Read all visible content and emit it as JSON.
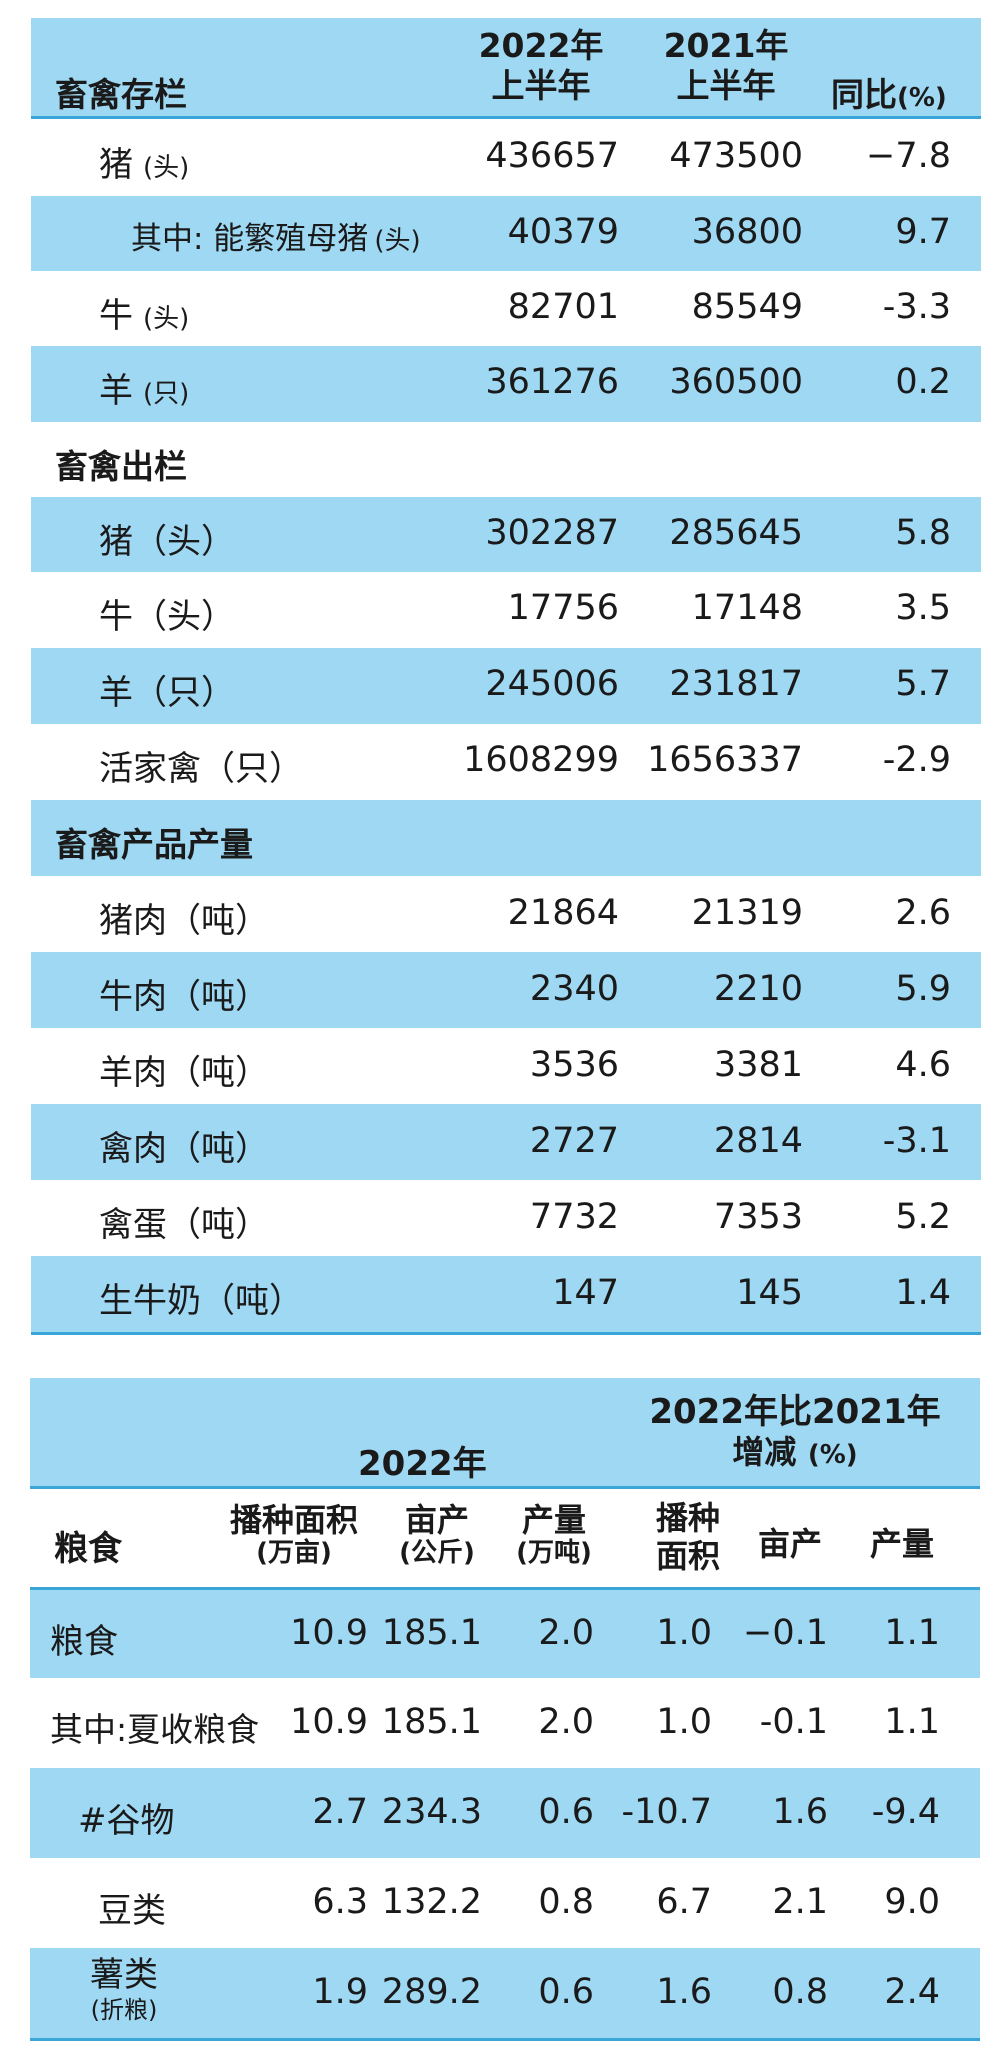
{
  "livestock": {
    "headers": {
      "title": "畜禽存栏",
      "year2022": "2022年",
      "half2022": "上半年",
      "year2021": "2021年",
      "half2021": "上半年",
      "yoy": "同比",
      "yoy_unit": "(%)"
    },
    "sec_stock": [
      {
        "name": "猪",
        "unit": "(头)",
        "v2022": "436657",
        "v2021": "473500",
        "yoy": "−7.8"
      },
      {
        "name": "其中: 能繁殖母猪",
        "unit": "(头)",
        "v2022": "40379",
        "v2021": "36800",
        "yoy": "9.7"
      },
      {
        "name": "牛",
        "unit": "(头)",
        "v2022": "82701",
        "v2021": "85549",
        "yoy": "-3.3"
      },
      {
        "name": "羊",
        "unit": "(只)",
        "v2022": "361276",
        "v2021": "360500",
        "yoy": "0.2"
      }
    ],
    "sec_out_title": "畜禽出栏",
    "sec_out": [
      {
        "name": "猪（头）",
        "v2022": "302287",
        "v2021": "285645",
        "yoy": "5.8"
      },
      {
        "name": "牛（头）",
        "v2022": "17756",
        "v2021": "17148",
        "yoy": "3.5"
      },
      {
        "name": "羊（只）",
        "v2022": "245006",
        "v2021": "231817",
        "yoy": "5.7"
      },
      {
        "name": "活家禽（只）",
        "v2022": "1608299",
        "v2021": "1656337",
        "yoy": "-2.9"
      }
    ],
    "sec_prod_title": "畜禽产品产量",
    "sec_prod": [
      {
        "name": "猪肉（吨）",
        "v2022": "21864",
        "v2021": "21319",
        "yoy": "2.6"
      },
      {
        "name": "牛肉（吨）",
        "v2022": "2340",
        "v2021": "2210",
        "yoy": "5.9"
      },
      {
        "name": "羊肉（吨）",
        "v2022": "3536",
        "v2021": "3381",
        "yoy": "4.6"
      },
      {
        "name": "禽肉（吨）",
        "v2022": "2727",
        "v2021": "2814",
        "yoy": "-3.1"
      },
      {
        "name": "禽蛋（吨）",
        "v2022": "7732",
        "v2021": "7353",
        "yoy": "5.2"
      },
      {
        "name": "生牛奶（吨）",
        "v2022": "147",
        "v2021": "145",
        "yoy": "1.4"
      }
    ]
  },
  "grain": {
    "headers": {
      "year2022": "2022年",
      "compare_line1": "2022年比2021年",
      "compare_line2": "增减",
      "compare_unit": "(%)",
      "grain": "粮食",
      "area": "播种面积",
      "area_unit": "(万亩)",
      "yield": "亩产",
      "yield_unit": "(公斤)",
      "output": "产量",
      "output_unit": "(万吨)",
      "area_chg1": "播种",
      "area_chg2": "面积",
      "yield_chg": "亩产",
      "output_chg": "产量"
    },
    "rows": [
      {
        "name": "粮食",
        "area": "10.9",
        "yield": "185.1",
        "output": "2.0",
        "area_chg": "1.0",
        "yield_chg": "−0.1",
        "output_chg": "1.1"
      },
      {
        "name": "其中:夏收粮食",
        "area": "10.9",
        "yield": "185.1",
        "output": "2.0",
        "area_chg": "1.0",
        "yield_chg": "-0.1",
        "output_chg": "1.1"
      },
      {
        "name": "#谷物",
        "area": "2.7",
        "yield": "234.3",
        "output": "0.6",
        "area_chg": "-10.7",
        "yield_chg": "1.6",
        "output_chg": "-9.4"
      },
      {
        "name": "豆类",
        "area": "6.3",
        "yield": "132.2",
        "output": "0.8",
        "area_chg": "6.7",
        "yield_chg": "2.1",
        "output_chg": "9.0"
      },
      {
        "name": "薯类",
        "name_sub": "(折粮)",
        "area": "1.9",
        "yield": "289.2",
        "output": "0.6",
        "area_chg": "1.6",
        "yield_chg": "0.8",
        "output_chg": "2.4"
      }
    ]
  }
}
